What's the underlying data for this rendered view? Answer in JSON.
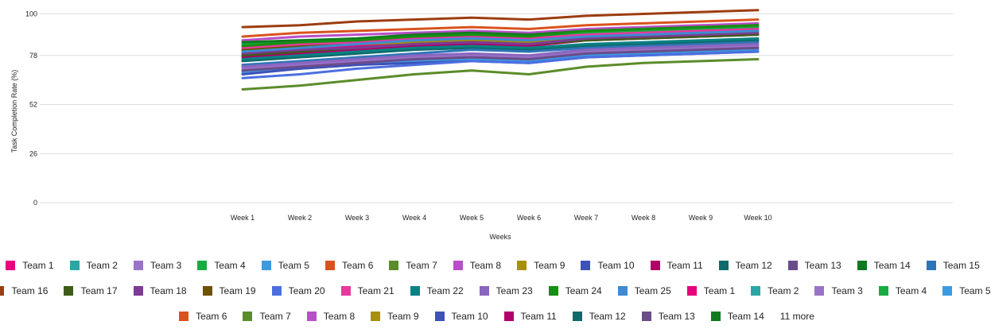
{
  "chart_data": {
    "type": "line",
    "xlabel": "Weeks",
    "ylabel": "Task Completion Rate (%)",
    "ylim": [
      0,
      104
    ],
    "yticks": [
      0,
      26,
      52,
      78,
      100
    ],
    "grid": true,
    "legend_position": "bottom",
    "categories": [
      "Week 1",
      "Week 2",
      "Week 3",
      "Week 4",
      "Week 5",
      "Week 6",
      "Week 7",
      "Week 8",
      "Week 9",
      "Week 10"
    ],
    "series": [
      {
        "name": "Team 1",
        "color": "#E6007E",
        "values": [
          79,
          81,
          83,
          85,
          86,
          85,
          88,
          89,
          90,
          91
        ]
      },
      {
        "name": "Team 2",
        "color": "#2CA6A4",
        "values": [
          80,
          82,
          84,
          86,
          88,
          87,
          89,
          90,
          91,
          92
        ]
      },
      {
        "name": "Team 3",
        "color": "#9A73C8",
        "values": [
          71,
          73,
          75,
          77,
          78,
          77,
          80,
          81,
          82,
          83
        ]
      },
      {
        "name": "Team 4",
        "color": "#1AAB40",
        "values": [
          84,
          85,
          87,
          88,
          89,
          88,
          90,
          91,
          92,
          93
        ]
      },
      {
        "name": "Team 5",
        "color": "#3B9BE0",
        "values": [
          69,
          71,
          73,
          75,
          76,
          75,
          78,
          79,
          80,
          81
        ]
      },
      {
        "name": "Team 6",
        "color": "#D9531E",
        "values": [
          88,
          90,
          91,
          92,
          93,
          92,
          94,
          95,
          96,
          97
        ]
      },
      {
        "name": "Team 7",
        "color": "#5B8C2A",
        "values": [
          60,
          62,
          65,
          68,
          70,
          68,
          72,
          74,
          75,
          76
        ]
      },
      {
        "name": "Team 8",
        "color": "#B84FC9",
        "values": [
          86,
          88,
          89,
          90,
          91,
          90,
          92,
          93,
          94,
          95
        ]
      },
      {
        "name": "Team 9",
        "color": "#A8900A",
        "values": [
          81,
          83,
          84,
          85,
          86,
          85,
          87,
          88,
          89,
          90
        ]
      },
      {
        "name": "Team 10",
        "color": "#3D52B8",
        "values": [
          68,
          71,
          73,
          74,
          75,
          74,
          77,
          78,
          79,
          80
        ]
      },
      {
        "name": "Team 11",
        "color": "#B0006A",
        "values": [
          77,
          79,
          81,
          83,
          84,
          83,
          86,
          87,
          88,
          89
        ]
      },
      {
        "name": "Team 12",
        "color": "#0D6B6B",
        "values": [
          75,
          77,
          79,
          81,
          82,
          81,
          83,
          84,
          85,
          86
        ]
      },
      {
        "name": "Team 13",
        "color": "#6B4C8A",
        "values": [
          70,
          72,
          74,
          76,
          77,
          76,
          79,
          80,
          81,
          82
        ]
      },
      {
        "name": "Team 14",
        "color": "#117A1E",
        "values": [
          85,
          86,
          87,
          89,
          90,
          89,
          91,
          92,
          93,
          94
        ]
      },
      {
        "name": "Team 15",
        "color": "#2E75B6",
        "values": [
          73,
          75,
          77,
          79,
          81,
          80,
          82,
          83,
          84,
          85
        ]
      },
      {
        "name": "Team 16",
        "color": "#9C3D10",
        "values": [
          93,
          94,
          96,
          97,
          98,
          97,
          99,
          100,
          101,
          102
        ]
      },
      {
        "name": "Team 17",
        "color": "#3F5C1A",
        "values": [
          78,
          80,
          82,
          84,
          85,
          84,
          86,
          87,
          88,
          89
        ]
      },
      {
        "name": "Team 18",
        "color": "#7E3A96",
        "values": [
          79,
          81,
          82,
          84,
          85,
          84,
          87,
          88,
          89,
          90
        ]
      },
      {
        "name": "Team 19",
        "color": "#6E5200",
        "values": [
          81,
          83,
          85,
          86,
          87,
          86,
          88,
          89,
          90,
          91
        ]
      },
      {
        "name": "Team 20",
        "color": "#4C6FE0",
        "values": [
          66,
          68,
          71,
          73,
          75,
          74,
          77,
          78,
          79,
          80
        ]
      },
      {
        "name": "Team 21",
        "color": "#E8389E",
        "values": [
          82,
          84,
          85,
          87,
          88,
          87,
          89,
          90,
          91,
          92
        ]
      },
      {
        "name": "Team 22",
        "color": "#0A8282",
        "values": [
          76,
          78,
          80,
          82,
          83,
          82,
          84,
          85,
          86,
          87
        ]
      },
      {
        "name": "Team 23",
        "color": "#8A66BF",
        "values": [
          72,
          74,
          76,
          78,
          79,
          78,
          81,
          82,
          83,
          84
        ]
      },
      {
        "name": "Team 24",
        "color": "#178F12",
        "values": [
          83,
          85,
          86,
          88,
          89,
          88,
          91,
          92,
          93,
          94
        ]
      },
      {
        "name": "Team 25",
        "color": "#3E8BD0",
        "values": [
          80,
          82,
          84,
          86,
          87,
          86,
          88,
          89,
          90,
          91
        ]
      }
    ]
  },
  "legend": {
    "rows": [
      [
        {
          "label": "Team 1",
          "color": "#E6007E"
        },
        {
          "label": "Team 2",
          "color": "#2CA6A4"
        },
        {
          "label": "Team 3",
          "color": "#9A73C8"
        },
        {
          "label": "Team 4",
          "color": "#1AAB40"
        },
        {
          "label": "Team 5",
          "color": "#3B9BE0"
        },
        {
          "label": "Team 6",
          "color": "#D9531E"
        },
        {
          "label": "Team 7",
          "color": "#5B8C2A"
        },
        {
          "label": "Team 8",
          "color": "#B84FC9"
        },
        {
          "label": "Team 9",
          "color": "#A8900A"
        },
        {
          "label": "Team 10",
          "color": "#3D52B8"
        },
        {
          "label": "Team 11",
          "color": "#B0006A"
        },
        {
          "label": "Team 12",
          "color": "#0D6B6B"
        },
        {
          "label": "Team 13",
          "color": "#6B4C8A"
        },
        {
          "label": "Team 14",
          "color": "#117A1E"
        },
        {
          "label": "Team 15",
          "color": "#2E75B6"
        }
      ],
      [
        {
          "label": "Team 16",
          "color": "#9C3D10"
        },
        {
          "label": "Team 17",
          "color": "#3F5C1A"
        },
        {
          "label": "Team 18",
          "color": "#7E3A96"
        },
        {
          "label": "Team 19",
          "color": "#6E5200"
        },
        {
          "label": "Team 20",
          "color": "#4C6FE0"
        },
        {
          "label": "Team 21",
          "color": "#E8389E"
        },
        {
          "label": "Team 22",
          "color": "#0A8282"
        },
        {
          "label": "Team 23",
          "color": "#8A66BF"
        },
        {
          "label": "Team 24",
          "color": "#178F12"
        },
        {
          "label": "Team 25",
          "color": "#3E8BD0"
        },
        {
          "label": "Team 1",
          "color": "#E6007E"
        },
        {
          "label": "Team 2",
          "color": "#2CA6A4"
        },
        {
          "label": "Team 3",
          "color": "#9A73C8"
        },
        {
          "label": "Team 4",
          "color": "#1AAB40"
        },
        {
          "label": "Team 5",
          "color": "#3B9BE0"
        }
      ],
      [
        {
          "label": "Team 6",
          "color": "#D9531E"
        },
        {
          "label": "Team 7",
          "color": "#5B8C2A"
        },
        {
          "label": "Team 8",
          "color": "#B84FC9"
        },
        {
          "label": "Team 9",
          "color": "#A8900A"
        },
        {
          "label": "Team 10",
          "color": "#3D52B8"
        },
        {
          "label": "Team 11",
          "color": "#B0006A"
        },
        {
          "label": "Team 12",
          "color": "#0D6B6B"
        },
        {
          "label": "Team 13",
          "color": "#6B4C8A"
        },
        {
          "label": "Team 14",
          "color": "#117A1E"
        }
      ]
    ],
    "more_label": "11 more"
  }
}
